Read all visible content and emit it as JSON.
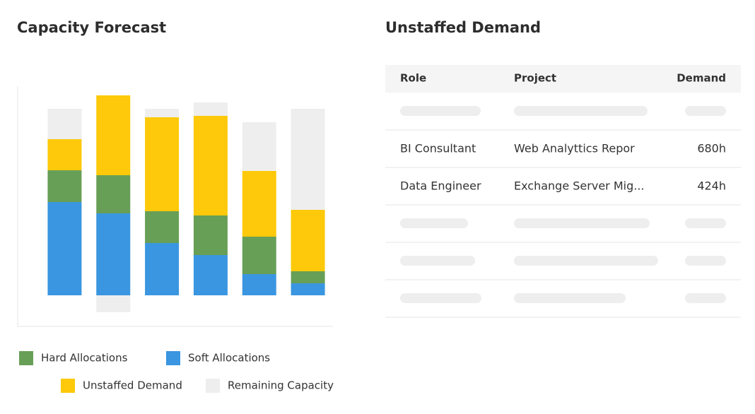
{
  "chart_data": {
    "type": "stacked-bar",
    "title": "Capacity Forecast",
    "categories": [
      null,
      null,
      null,
      null,
      null,
      null
    ],
    "series": [
      {
        "name": "Hard Allocations",
        "color": "#689f57",
        "values": [
          45,
          54,
          45,
          56,
          53,
          17
        ]
      },
      {
        "name": "Soft Allocations",
        "color": "#3a96e0",
        "values": [
          132,
          116,
          74,
          57,
          30,
          17
        ]
      },
      {
        "name": "Unstaffed Demand",
        "color": "#fdc90a",
        "values": [
          44,
          113,
          133,
          141,
          93,
          87
        ]
      },
      {
        "name": "Remaining Capacity",
        "color": "#eeeeee",
        "values": [
          43,
          -24,
          12,
          19,
          69,
          143
        ]
      }
    ],
    "ylim": [
      -44,
      296
    ]
  },
  "table": {
    "title": "Unstaffed Demand",
    "columns": [
      "Role",
      "Project",
      "Demand"
    ],
    "rows": [
      [
        "BI Consultant",
        "Web Analyttics Repor",
        "680h"
      ],
      [
        "Data Engineer",
        "Exchange Server Mig...",
        "424h"
      ]
    ]
  }
}
